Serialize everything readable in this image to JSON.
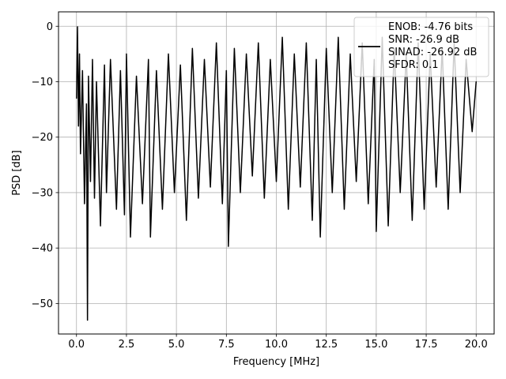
{
  "chart_data": {
    "type": "line",
    "title": "",
    "xlabel": "Frequency [MHz]",
    "ylabel": "PSD [dB]",
    "xlim": [
      -0.9,
      20.9
    ],
    "ylim": [
      -55.5,
      2.6
    ],
    "x_ticks": [
      0.0,
      2.5,
      5.0,
      7.5,
      10.0,
      12.5,
      15.0,
      17.5,
      20.0
    ],
    "x_tick_labels": [
      "0.0",
      "2.5",
      "5.0",
      "7.5",
      "10.0",
      "12.5",
      "15.0",
      "17.5",
      "20.0"
    ],
    "y_ticks": [
      0,
      -10,
      -20,
      -30,
      -40,
      -50
    ],
    "y_tick_labels": [
      "0",
      "−10",
      "−20",
      "−30",
      "−40",
      "−50"
    ],
    "grid": true,
    "legend_position": "top-right",
    "legend_lines": [
      "ENOB: -4.76 bits",
      "SNR: -26.9 dB",
      "SINAD: -26.92 dB",
      "SFDR: 0.1"
    ],
    "line_color": "#000000",
    "series": [
      {
        "x": [
          0.0,
          0.05,
          0.1,
          0.15,
          0.2,
          0.3,
          0.4,
          0.5,
          0.55,
          0.6,
          0.7,
          0.8,
          0.9,
          1.0,
          1.2,
          1.4,
          1.5,
          1.7,
          2.0,
          2.2,
          2.4,
          2.5,
          2.7,
          3.0,
          3.3,
          3.6,
          3.7,
          4.0,
          4.3,
          4.6,
          4.9,
          5.2,
          5.5,
          5.8,
          6.1,
          6.4,
          6.7,
          7.0,
          7.3,
          7.5,
          7.6,
          7.9,
          8.2,
          8.5,
          8.8,
          9.1,
          9.4,
          9.7,
          10.0,
          10.3,
          10.6,
          10.9,
          11.2,
          11.5,
          11.8,
          12.0,
          12.2,
          12.5,
          12.8,
          13.1,
          13.4,
          13.7,
          14.0,
          14.3,
          14.6,
          14.9,
          15.0,
          15.3,
          15.6,
          15.9,
          16.2,
          16.5,
          16.8,
          17.1,
          17.4,
          17.7,
          18.0,
          18.3,
          18.6,
          18.9,
          19.2,
          19.5,
          19.8,
          20.0
        ],
        "y": [
          -13,
          -0.1,
          -18,
          -5,
          -23,
          -8,
          -32,
          -14,
          -53,
          -9,
          -28,
          -6,
          -31,
          -10,
          -36,
          -7,
          -30,
          -6,
          -33,
          -8,
          -34,
          -5,
          -38,
          -9,
          -32,
          -6,
          -38,
          -8,
          -33,
          -5,
          -30,
          -7,
          -35,
          -4,
          -31,
          -6,
          -29,
          -3,
          -32,
          -8,
          -39.7,
          -4,
          -30,
          -5,
          -27,
          -3,
          -31,
          -6,
          -28,
          -2,
          -33,
          -5,
          -29,
          -3,
          -35,
          -6,
          -38,
          -4,
          -30,
          -2,
          -33,
          -5,
          -28,
          -3,
          -32,
          -6,
          -37,
          -2,
          -36,
          -4,
          -30,
          -5,
          -35,
          -3,
          -33,
          -5,
          -29,
          -4,
          -33,
          -3,
          -30,
          -6,
          -19,
          -10
        ]
      }
    ]
  }
}
